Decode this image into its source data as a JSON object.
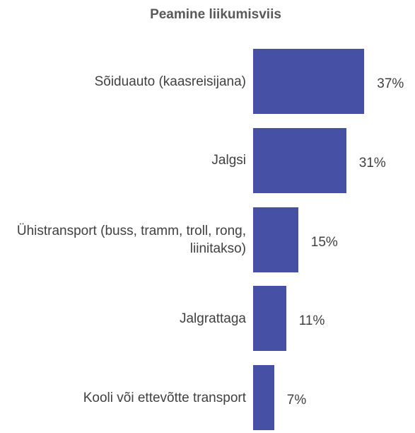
{
  "chart_data": {
    "type": "bar",
    "orientation": "horizontal",
    "title": "Peamine liikumisviis",
    "categories": [
      "Sõiduauto (kaasreisijana)",
      "Jalgsi",
      "Ühistransport (buss, tramm, troll, rong, liinitakso)",
      "Jalgrattaga",
      "Kooli või ettevõtte transport"
    ],
    "values": [
      37,
      31,
      15,
      11,
      7
    ],
    "value_labels": [
      "37%",
      "31%",
      "15%",
      "11%",
      "7%"
    ],
    "color": "#4650a5"
  }
}
